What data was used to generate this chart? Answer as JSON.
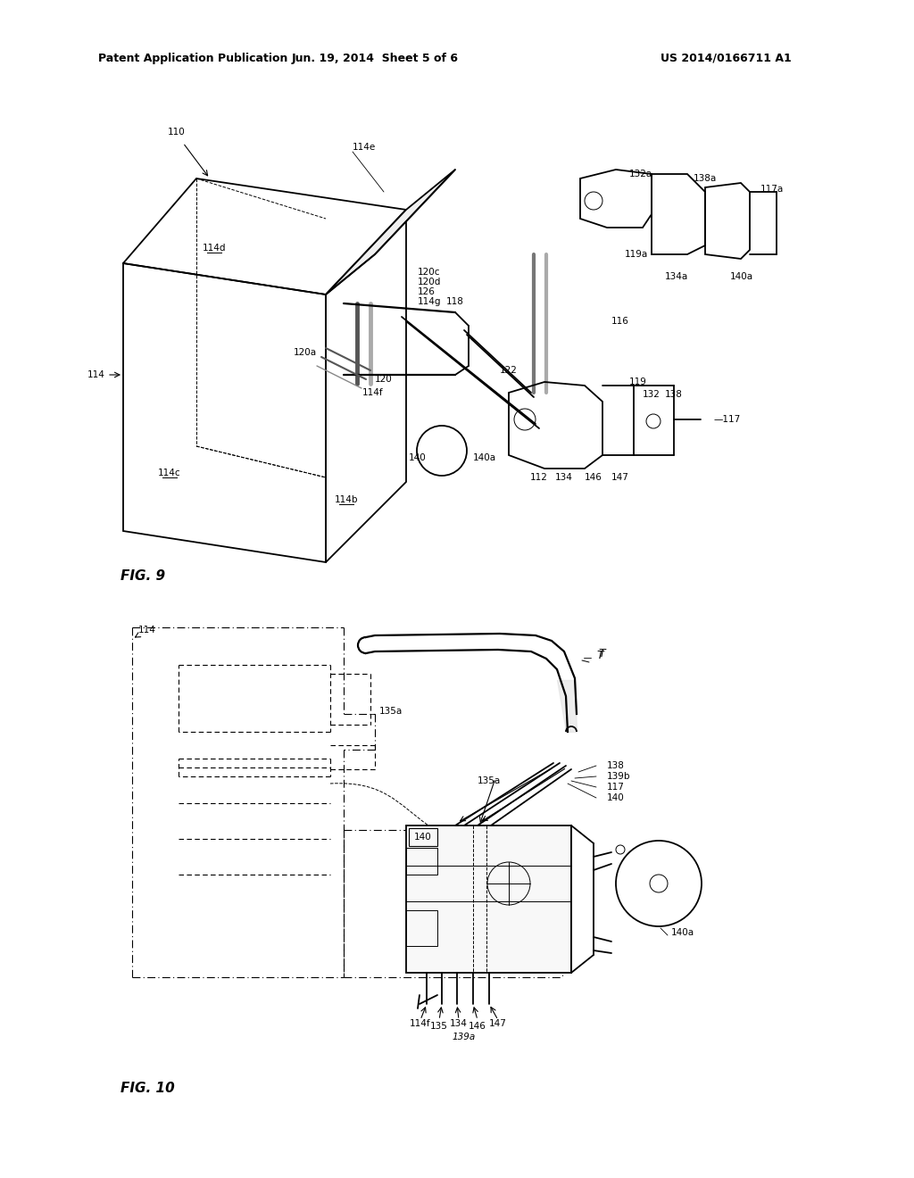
{
  "bg_color": "#ffffff",
  "header_left": "Patent Application Publication",
  "header_mid": "Jun. 19, 2014  Sheet 5 of 6",
  "header_right": "US 2014/0166711 A1",
  "fig9_label": "FIG. 9",
  "fig10_label": "FIG. 10",
  "lc": "#000000",
  "lw": 1.3,
  "tlw": 0.7
}
